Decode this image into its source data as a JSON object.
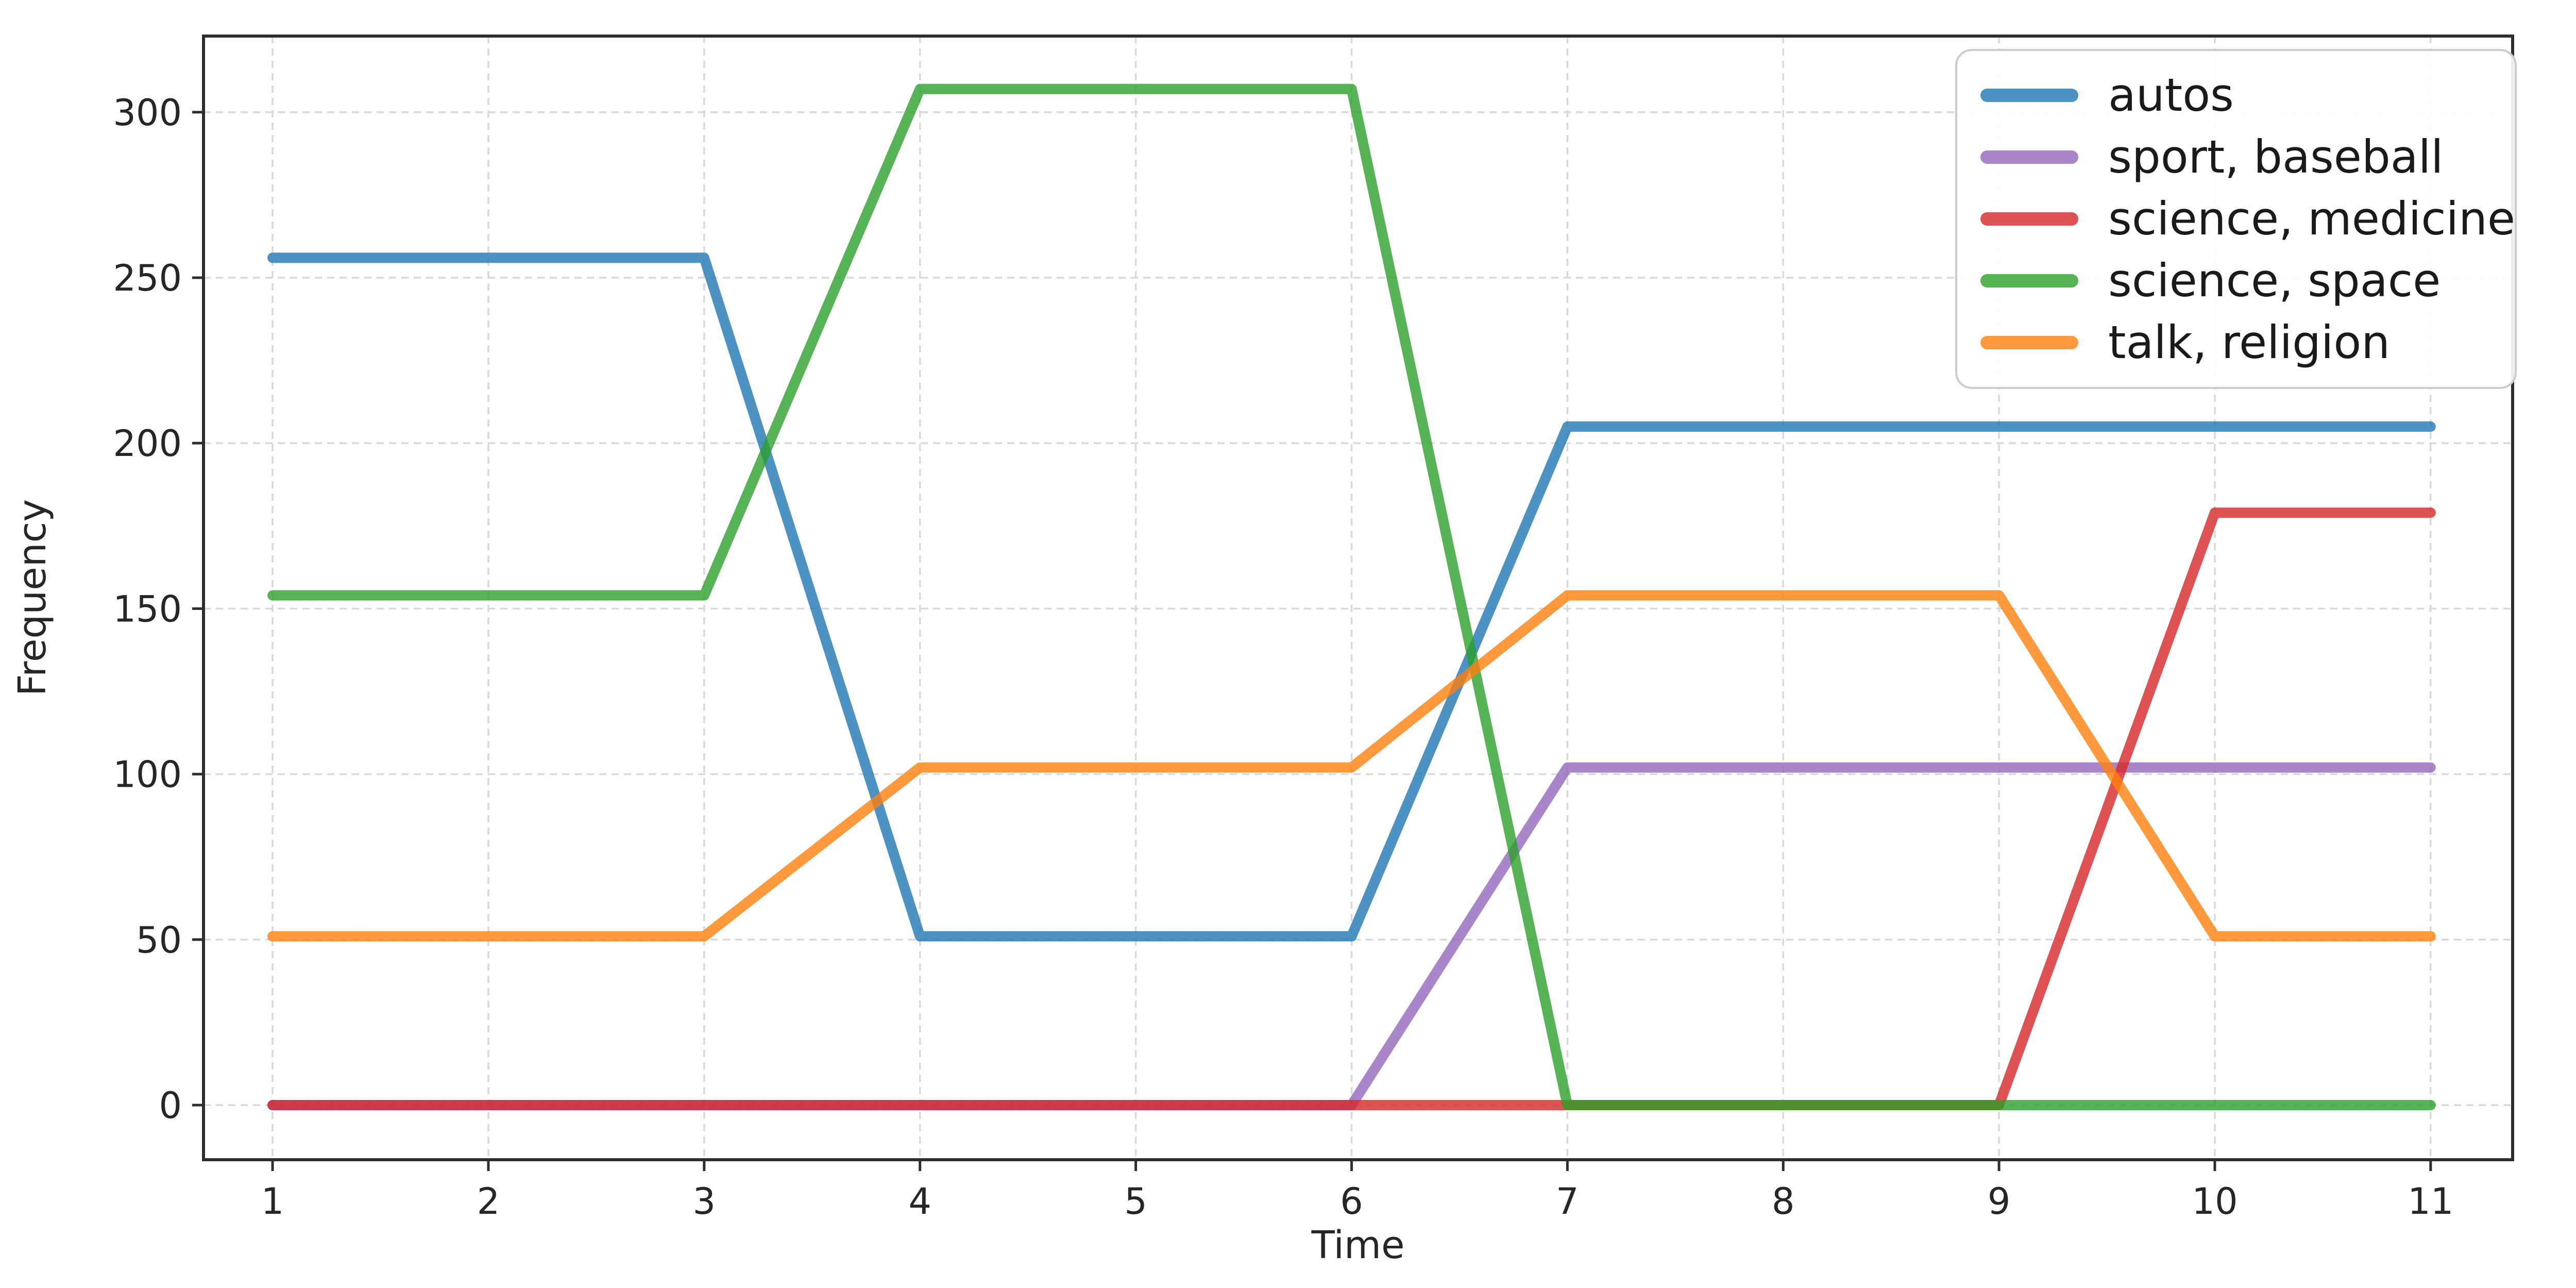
{
  "chart_data": {
    "type": "line",
    "title": "",
    "xlabel": "Time",
    "ylabel": "Frequency",
    "x": [
      1,
      2,
      3,
      4,
      5,
      6,
      7,
      8,
      9,
      10,
      11
    ],
    "xticks": [
      "1",
      "2",
      "3",
      "4",
      "5",
      "6",
      "7",
      "8",
      "9",
      "10",
      "11"
    ],
    "yticks": [
      "0",
      "50",
      "100",
      "150",
      "200",
      "250",
      "300"
    ],
    "ytick_values": [
      0,
      50,
      100,
      150,
      200,
      250,
      300
    ],
    "xlim": [
      0.68,
      11.38
    ],
    "ylim": [
      -16.5,
      323
    ],
    "grid": true,
    "grid_style": "dashed",
    "legend_position": "upper right",
    "series": [
      {
        "name": "autos",
        "color": "#1f77b4",
        "values": [
          256,
          256,
          256,
          51,
          51,
          51,
          205,
          205,
          205,
          205,
          205
        ]
      },
      {
        "name": "sport, baseball",
        "color": "#9467bd",
        "values": [
          0,
          0,
          0,
          0,
          0,
          0,
          102,
          102,
          102,
          102,
          102
        ]
      },
      {
        "name": "science, medicine",
        "color": "#d62728",
        "values": [
          0,
          0,
          0,
          0,
          0,
          0,
          0,
          0,
          0,
          179,
          179
        ]
      },
      {
        "name": "science, space",
        "color": "#2ca02c",
        "values": [
          154,
          154,
          154,
          307,
          307,
          307,
          0,
          0,
          0,
          0,
          0
        ]
      },
      {
        "name": "talk, religion",
        "color": "#ff7f0e",
        "values": [
          51,
          51,
          51,
          102,
          102,
          102,
          154,
          154,
          154,
          51,
          51
        ]
      }
    ],
    "style": {
      "grid_color": "#d9d9d9",
      "spine_color": "#2e2e2e",
      "tick_color": "#2e2e2e",
      "text_color": "#262626",
      "line_opacity": 0.8,
      "background": "#ffffff",
      "legend_border_color": "#cccccc"
    }
  }
}
